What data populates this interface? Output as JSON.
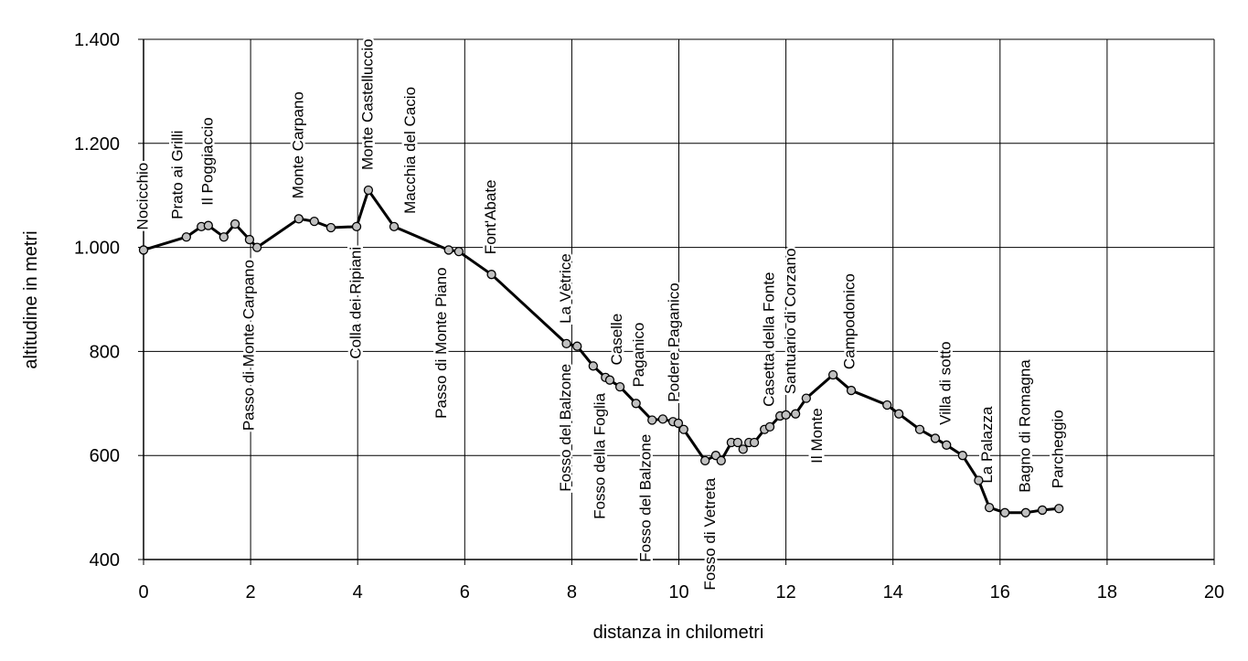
{
  "chart_data": {
    "type": "line",
    "x_label": "distanza in chilometri",
    "y_label": "altitudine  in metri",
    "x": [
      0,
      0.8,
      1.08,
      1.21,
      1.5,
      1.71,
      1.98,
      2.12,
      2.9,
      3.19,
      3.5,
      3.98,
      4.2,
      4.68,
      5.7,
      5.89,
      6.5,
      7.9,
      8.1,
      8.4,
      8.63,
      8.71,
      8.9,
      9.2,
      9.5,
      9.7,
      9.89,
      9.99,
      10.09,
      10.49,
      10.69,
      10.79,
      10.98,
      11.1,
      11.2,
      11.31,
      11.41,
      11.6,
      11.7,
      11.89,
      12.0,
      12.18,
      12.38,
      12.88,
      13.22,
      13.89,
      14.11,
      14.5,
      14.79,
      15.0,
      15.3,
      15.6,
      15.8,
      16.09,
      16.48,
      16.79,
      17.1
    ],
    "values": [
      995,
      1020,
      1040,
      1042,
      1020,
      1045,
      1015,
      1000,
      1055,
      1050,
      1038,
      1040,
      1110,
      1040,
      995,
      992,
      948,
      815,
      810,
      772,
      750,
      745,
      732,
      700,
      668,
      670,
      665,
      662,
      650,
      590,
      600,
      590,
      625,
      625,
      612,
      625,
      625,
      650,
      655,
      676,
      678,
      680,
      710,
      755,
      725,
      697,
      680,
      650,
      633,
      620,
      600,
      552,
      500,
      490,
      490,
      495,
      498
    ],
    "color": "#000000",
    "marker_color": "#c0c0c0",
    "xlim": [
      0,
      20
    ],
    "xticks": [
      0,
      2,
      4,
      6,
      8,
      10,
      12,
      14,
      16,
      18,
      20
    ],
    "ylim": [
      400,
      1400
    ],
    "yticks": [
      400,
      600,
      800,
      {
        "value": 1000,
        "label": "1.000"
      },
      {
        "value": 1200,
        "label": "1.200"
      },
      {
        "value": 1400,
        "label": "1.400"
      }
    ],
    "grid": true,
    "annotations": [
      {
        "text": "Nocicchio",
        "x": 0,
        "side": "above"
      },
      {
        "text": "Prato ai Grilli",
        "x": 0.65,
        "side": "above"
      },
      {
        "text": "Il Poggiaccio",
        "x": 1.21,
        "side": "above"
      },
      {
        "text": "Passo di Monte Carpano",
        "x": 1.98,
        "side": "below"
      },
      {
        "text": "Monte Carpano",
        "x": 2.9,
        "side": "above"
      },
      {
        "text": "Colla dei Ripiani",
        "x": 3.98,
        "side": "below"
      },
      {
        "text": "Monte Castelluccio",
        "x": 4.2,
        "side": "above"
      },
      {
        "text": "Macchia del Cacio",
        "x": 5.0,
        "side": "above"
      },
      {
        "text": "Passo di Monte Piano",
        "x": 5.58,
        "side": "below"
      },
      {
        "text": "Font'Abate",
        "x": 6.5,
        "side": "above"
      },
      {
        "text": "La Vètrice",
        "x": 7.9,
        "side": "above"
      },
      {
        "text": "Fosso del Balzone",
        "x": 7.9,
        "side": "below"
      },
      {
        "text": "Fosso della Foglia",
        "x": 8.54,
        "side": "below"
      },
      {
        "text": "Caselle",
        "x": 8.86,
        "side": "above"
      },
      {
        "text": "Paganico",
        "x": 9.27,
        "side": "above"
      },
      {
        "text": "Fosso del Balzone",
        "x": 9.39,
        "side": "below"
      },
      {
        "text": "Podere Paganico",
        "x": 9.92,
        "side": "above"
      },
      {
        "text": "Fosso di Vetreta",
        "x": 10.6,
        "side": "below"
      },
      {
        "text": "Casetta della Fonte",
        "x": 11.7,
        "side": "above"
      },
      {
        "text": "Santuario di Corzano",
        "x": 12.1,
        "side": "above"
      },
      {
        "text": "Il Monte",
        "x": 12.6,
        "side": "below"
      },
      {
        "text": "Campodonico",
        "x": 13.2,
        "side": "above"
      },
      {
        "text": "Villa di sotto",
        "x": 15.0,
        "side": "above"
      },
      {
        "text": "La Palazza",
        "x": 15.77,
        "side": "above"
      },
      {
        "text": "Bagno di Romagna",
        "x": 16.48,
        "side": "above"
      },
      {
        "text": "Parcheggio",
        "x": 17.1,
        "side": "above"
      }
    ]
  }
}
